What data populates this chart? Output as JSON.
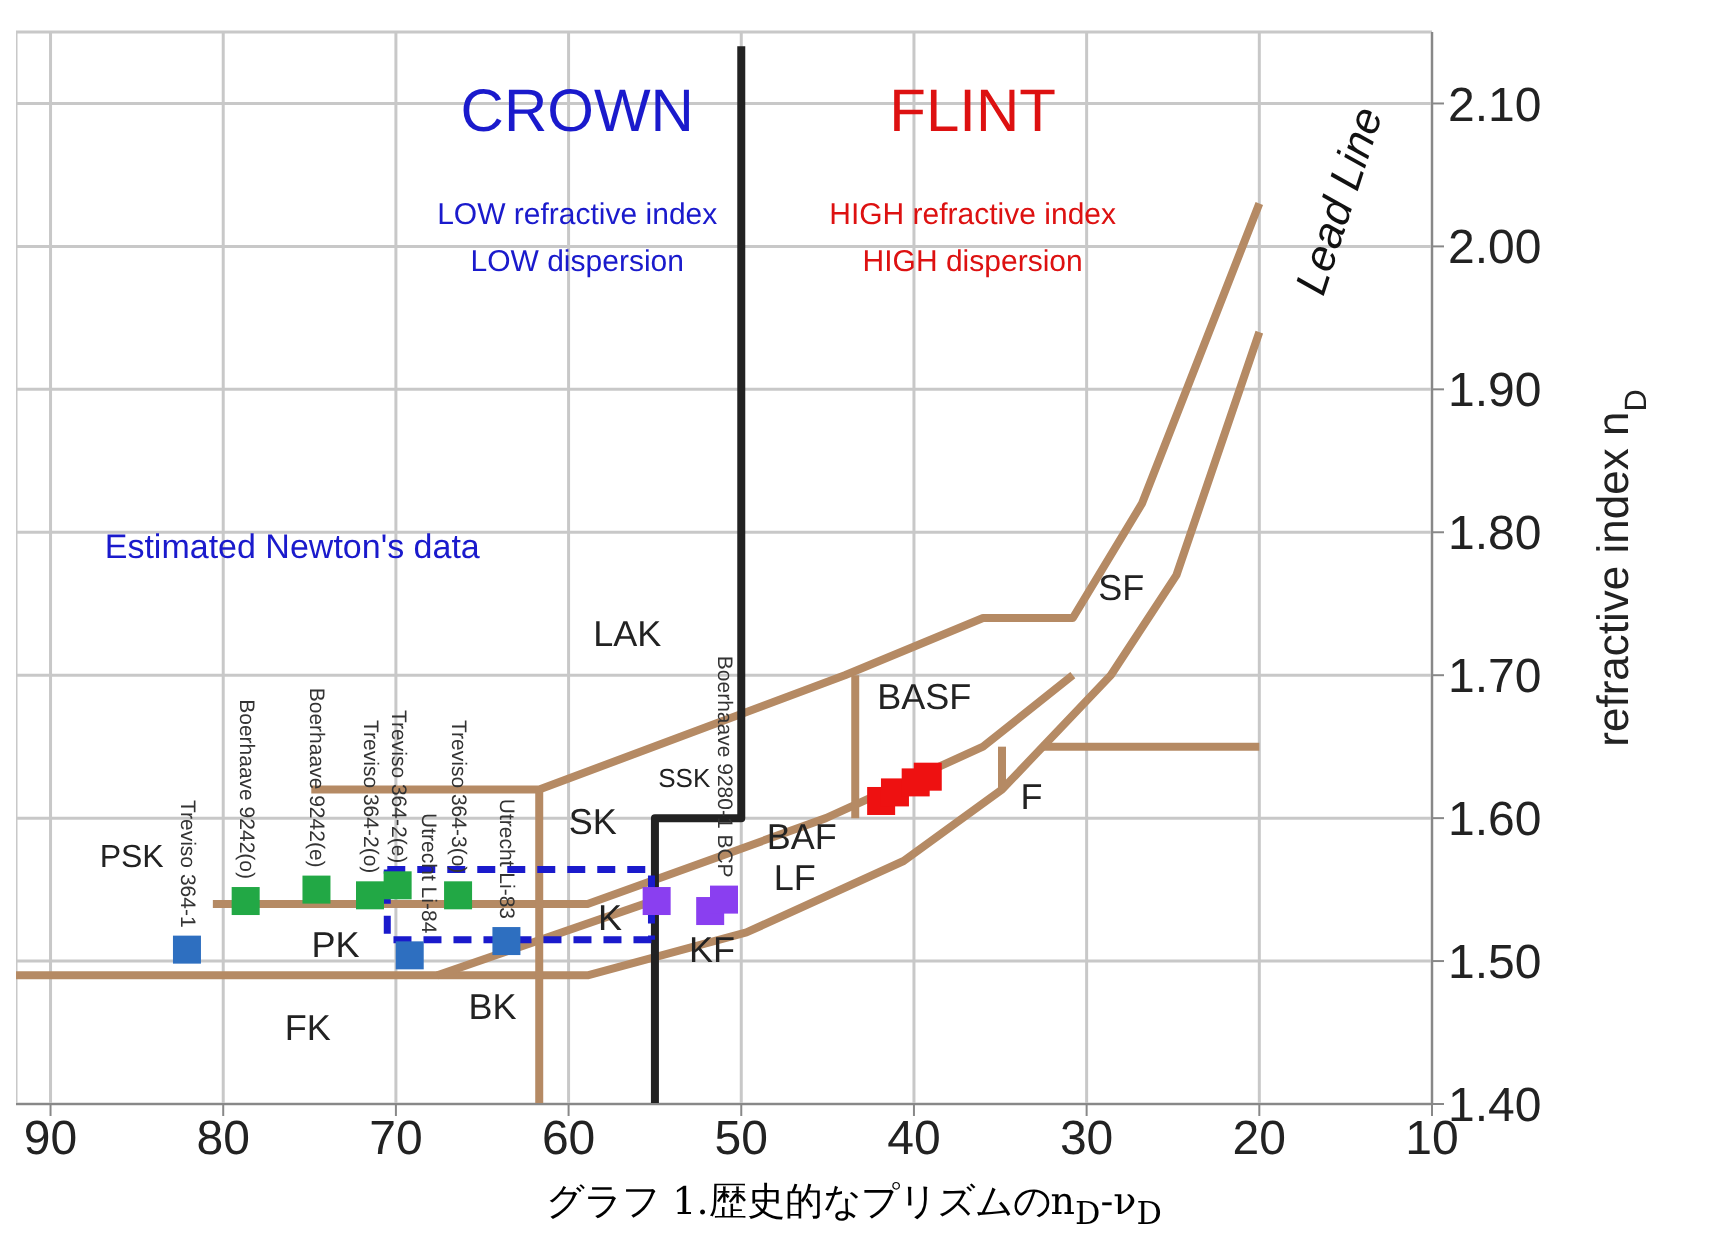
{
  "chart_data": {
    "type": "scatter",
    "ylabel": "refractive index n$_{D}$",
    "xlim": [
      92,
      10
    ],
    "xticks": [
      90,
      80,
      70,
      60,
      50,
      40,
      30,
      20,
      10
    ],
    "ylim": [
      1.4,
      2.15
    ],
    "yticks": [
      {
        "value": 1.4,
        "label": "1.40"
      },
      {
        "value": 1.5,
        "label": "1.50"
      },
      {
        "value": 1.6,
        "label": "1.60"
      },
      {
        "value": 1.7,
        "label": "1.70"
      },
      {
        "value": 1.8,
        "label": "1.80"
      },
      {
        "value": 1.9,
        "label": "1.90"
      },
      {
        "value": 2.0,
        "label": "2.00"
      },
      {
        "value": 2.1,
        "label": "2.10"
      }
    ],
    "grid": true,
    "legend": false,
    "marker": "square",
    "series": [
      {
        "type": "line",
        "marker": "none",
        "color": "#b58a64",
        "x": [
          92,
          58.9,
          49.7,
          40.6,
          34.9,
          28.6,
          24.8,
          20.0
        ],
        "values": [
          1.49,
          1.49,
          1.52,
          1.57,
          1.62,
          1.7,
          1.77,
          1.94
        ]
      },
      {
        "type": "line",
        "marker": "none",
        "color": "#b58a64",
        "x": [
          74.9,
          61.7,
          44.0,
          36.0,
          30.8,
          26.8,
          20.0
        ],
        "values": [
          1.62,
          1.62,
          1.7,
          1.74,
          1.74,
          1.82,
          2.03
        ]
      },
      {
        "type": "line",
        "marker": "none",
        "color": "#b58a64",
        "x": [
          80.6,
          58.9,
          45.1,
          36.0,
          30.8
        ],
        "values": [
          1.54,
          1.54,
          1.6,
          1.65,
          1.7
        ]
      },
      {
        "type": "line",
        "marker": "none",
        "color": "#b58a64",
        "x": [
          61.7,
          61.7
        ],
        "values": [
          1.62,
          1.4
        ]
      },
      {
        "type": "line",
        "marker": "none",
        "color": "#b58a64",
        "x": [
          43.4,
          43.4
        ],
        "values": [
          1.7,
          1.6
        ]
      },
      {
        "type": "line",
        "marker": "none",
        "color": "#b58a64",
        "x": [
          34.9,
          34.9
        ],
        "values": [
          1.65,
          1.62
        ]
      },
      {
        "type": "line",
        "marker": "none",
        "color": "#b58a64",
        "x": [
          32.6,
          20.0
        ],
        "values": [
          1.65,
          1.65
        ]
      },
      {
        "type": "line",
        "marker": "none",
        "color": "#b58a64",
        "x": [
          67.6,
          55.6
        ],
        "values": [
          1.49,
          1.54
        ]
      },
      {
        "type": "line",
        "marker": "none",
        "color": "#222222",
        "x": [
          50,
          50,
          55,
          55
        ],
        "values": [
          2.14,
          1.6,
          1.6,
          1.4
        ]
      },
      {
        "type": "line",
        "marker": "none",
        "color": "#1a1acc",
        "line_style": "dashed",
        "x": [
          70.5,
          55.2,
          55.2
        ],
        "values": [
          1.564,
          1.564,
          1.515
        ]
      },
      {
        "type": "line",
        "marker": "none",
        "color": "#1a1acc",
        "line_style": "dashed",
        "x": [
          55.2,
          70.5,
          70.5
        ],
        "values": [
          1.515,
          1.515,
          1.564
        ]
      },
      {
        "color": "#2e6fc0",
        "x": [
          82.1,
          69.2,
          63.6
        ],
        "values": [
          1.508,
          1.504,
          1.514
        ]
      },
      {
        "color": "#22a845",
        "x": [
          78.7,
          74.6,
          71.5,
          69.9,
          66.4
        ],
        "values": [
          1.542,
          1.55,
          1.546,
          1.553,
          1.546
        ]
      },
      {
        "color": "#8a3ff0",
        "x": [
          54.9,
          51.8,
          51.0
        ],
        "values": [
          1.542,
          1.535,
          1.543
        ]
      },
      {
        "color": "#ee1111",
        "x": [
          41.9,
          41.1,
          39.9,
          39.2
        ],
        "values": [
          1.612,
          1.618,
          1.625,
          1.629
        ]
      }
    ],
    "annotations": [
      "CROWN",
      "LOW refractive index",
      "LOW dispersion",
      "FLINT",
      "HIGH refractive index",
      "HIGH dispersion",
      "Estimated Newton's data",
      "Lead Line",
      "LAK",
      "SK",
      "SSK",
      "BAF",
      "BASF",
      "PSK",
      "PK",
      "BK",
      "K",
      "KF",
      "LF",
      "SF",
      "FK",
      "F",
      {
        "text": "Treviso 364-1",
        "x": 82.1,
        "y": 1.508
      },
      {
        "text": "Boerhaave 9242(o)",
        "x": 78.7,
        "y": 1.542
      },
      {
        "text": "Boerhaave 9242(e)",
        "x": 74.6,
        "y": 1.55
      },
      {
        "text": "Treviso 364-2(o)",
        "x": 71.5,
        "y": 1.546
      },
      {
        "text": "Treviso 364-2(e)",
        "x": 69.9,
        "y": 1.553
      },
      {
        "text": "Utrecht Li-84",
        "x": 69.2,
        "y": 1.504
      },
      {
        "text": "Treviso 364-3(o)",
        "x": 66.4,
        "y": 1.546
      },
      {
        "text": "Utrecht Li-83",
        "x": 63.6,
        "y": 1.514
      },
      {
        "text": "Boerhaave 9280-1 BCP",
        "x": 51.0,
        "y": 1.543
      },
      "グラフ 1.歴史的なプリズムのn$_{D}$-ν$_{D}$"
    ]
  }
}
